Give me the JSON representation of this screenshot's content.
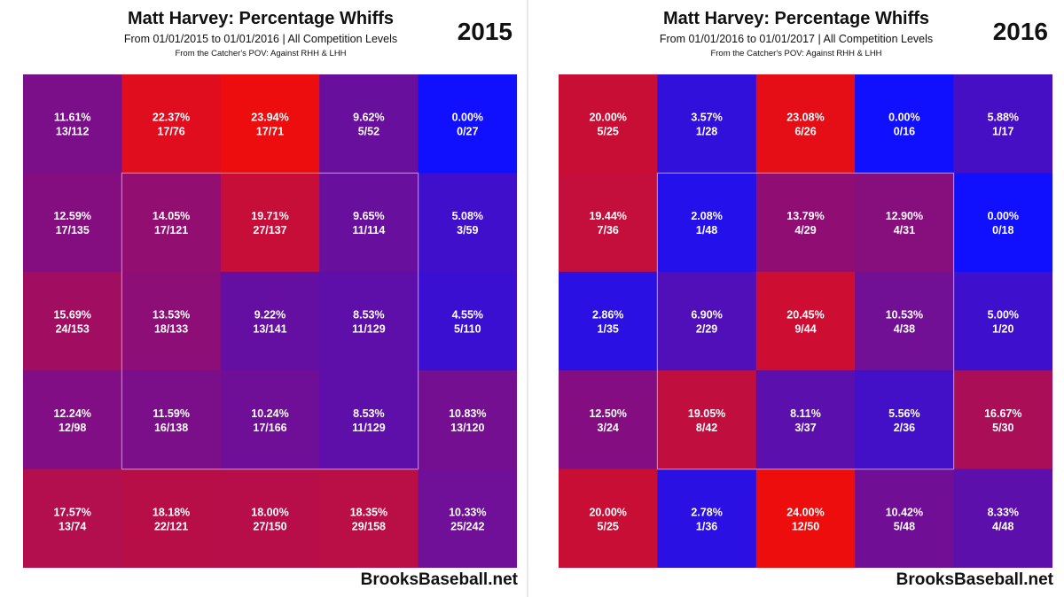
{
  "chart_data": [
    {
      "type": "heatmap",
      "title": "Matt Harvey: Percentage Whiffs",
      "subtitle": "From 01/01/2015 to 01/01/2016 | All Competition Levels",
      "pov_note": "From the Catcher's POV:   Against RHH & LHH",
      "year": "2015",
      "credit": "BrooksBaseball.net",
      "strike_zone": "inner 3x3 cells",
      "rows": [
        [
          {
            "pct": "11.61%",
            "frac": "13/112",
            "value": 11.61
          },
          {
            "pct": "22.37%",
            "frac": "17/76",
            "value": 22.37
          },
          {
            "pct": "23.94%",
            "frac": "17/71",
            "value": 23.94
          },
          {
            "pct": "9.62%",
            "frac": "5/52",
            "value": 9.62
          },
          {
            "pct": "0.00%",
            "frac": "0/27",
            "value": 0.0
          }
        ],
        [
          {
            "pct": "12.59%",
            "frac": "17/135",
            "value": 12.59
          },
          {
            "pct": "14.05%",
            "frac": "17/121",
            "value": 14.05
          },
          {
            "pct": "19.71%",
            "frac": "27/137",
            "value": 19.71
          },
          {
            "pct": "9.65%",
            "frac": "11/114",
            "value": 9.65
          },
          {
            "pct": "5.08%",
            "frac": "3/59",
            "value": 5.08
          }
        ],
        [
          {
            "pct": "15.69%",
            "frac": "24/153",
            "value": 15.69
          },
          {
            "pct": "13.53%",
            "frac": "18/133",
            "value": 13.53
          },
          {
            "pct": "9.22%",
            "frac": "13/141",
            "value": 9.22
          },
          {
            "pct": "8.53%",
            "frac": "11/129",
            "value": 8.53
          },
          {
            "pct": "4.55%",
            "frac": "5/110",
            "value": 4.55
          }
        ],
        [
          {
            "pct": "12.24%",
            "frac": "12/98",
            "value": 12.24
          },
          {
            "pct": "11.59%",
            "frac": "16/138",
            "value": 11.59
          },
          {
            "pct": "10.24%",
            "frac": "17/166",
            "value": 10.24
          },
          {
            "pct": "8.53%",
            "frac": "11/129",
            "value": 8.53
          },
          {
            "pct": "10.83%",
            "frac": "13/120",
            "value": 10.83
          }
        ],
        [
          {
            "pct": "17.57%",
            "frac": "13/74",
            "value": 17.57
          },
          {
            "pct": "18.18%",
            "frac": "22/121",
            "value": 18.18
          },
          {
            "pct": "18.00%",
            "frac": "27/150",
            "value": 18.0
          },
          {
            "pct": "18.35%",
            "frac": "29/158",
            "value": 18.35
          },
          {
            "pct": "10.33%",
            "frac": "25/242",
            "value": 10.33
          }
        ]
      ]
    },
    {
      "type": "heatmap",
      "title": "Matt Harvey: Percentage Whiffs",
      "subtitle": "From 01/01/2016 to 01/01/2017 | All Competition Levels",
      "pov_note": "From the Catcher's POV:   Against RHH & LHH",
      "year": "2016",
      "credit": "BrooksBaseball.net",
      "strike_zone": "inner 3x3 cells",
      "rows": [
        [
          {
            "pct": "20.00%",
            "frac": "5/25",
            "value": 20.0
          },
          {
            "pct": "3.57%",
            "frac": "1/28",
            "value": 3.57
          },
          {
            "pct": "23.08%",
            "frac": "6/26",
            "value": 23.08
          },
          {
            "pct": "0.00%",
            "frac": "0/16",
            "value": 0.0
          },
          {
            "pct": "5.88%",
            "frac": "1/17",
            "value": 5.88
          }
        ],
        [
          {
            "pct": "19.44%",
            "frac": "7/36",
            "value": 19.44
          },
          {
            "pct": "2.08%",
            "frac": "1/48",
            "value": 2.08
          },
          {
            "pct": "13.79%",
            "frac": "4/29",
            "value": 13.79
          },
          {
            "pct": "12.90%",
            "frac": "4/31",
            "value": 12.9
          },
          {
            "pct": "0.00%",
            "frac": "0/18",
            "value": 0.0
          }
        ],
        [
          {
            "pct": "2.86%",
            "frac": "1/35",
            "value": 2.86
          },
          {
            "pct": "6.90%",
            "frac": "2/29",
            "value": 6.9
          },
          {
            "pct": "20.45%",
            "frac": "9/44",
            "value": 20.45
          },
          {
            "pct": "10.53%",
            "frac": "4/38",
            "value": 10.53
          },
          {
            "pct": "5.00%",
            "frac": "1/20",
            "value": 5.0
          }
        ],
        [
          {
            "pct": "12.50%",
            "frac": "3/24",
            "value": 12.5
          },
          {
            "pct": "19.05%",
            "frac": "8/42",
            "value": 19.05
          },
          {
            "pct": "8.11%",
            "frac": "3/37",
            "value": 8.11
          },
          {
            "pct": "5.56%",
            "frac": "2/36",
            "value": 5.56
          },
          {
            "pct": "16.67%",
            "frac": "5/30",
            "value": 16.67
          }
        ],
        [
          {
            "pct": "20.00%",
            "frac": "5/25",
            "value": 20.0
          },
          {
            "pct": "2.78%",
            "frac": "1/36",
            "value": 2.78
          },
          {
            "pct": "24.00%",
            "frac": "12/50",
            "value": 24.0
          },
          {
            "pct": "10.42%",
            "frac": "5/48",
            "value": 10.42
          },
          {
            "pct": "8.33%",
            "frac": "4/48",
            "value": 8.33
          }
        ]
      ]
    }
  ],
  "color_scale": {
    "low": "#1010ff",
    "high": "#ee0d0d",
    "text": "#ffffff",
    "zone_border": "#9a9a9a"
  }
}
